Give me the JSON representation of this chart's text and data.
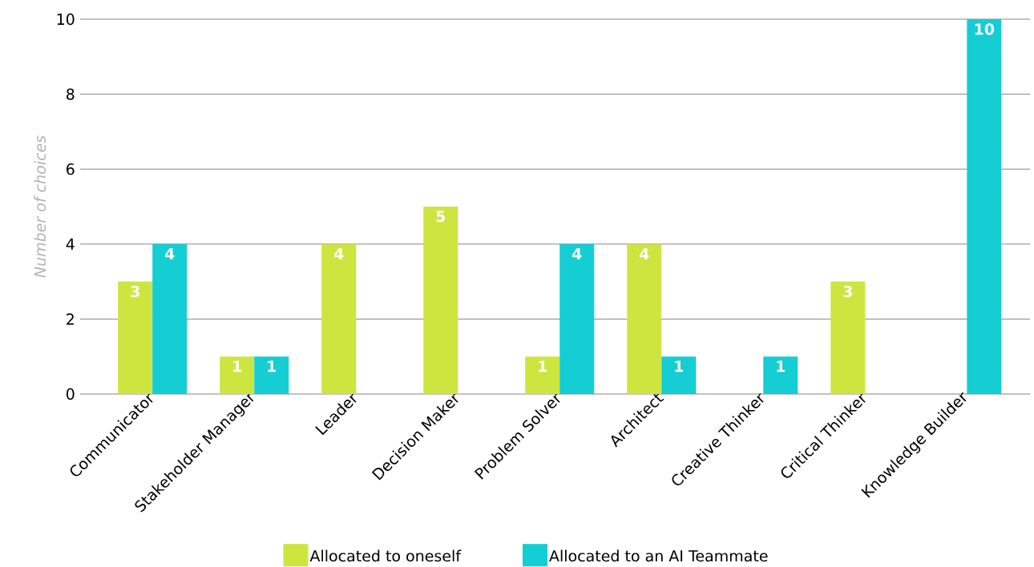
{
  "chart_data": {
    "type": "bar",
    "ylabel": "Number of choices",
    "categories": [
      "Communicator",
      "Stakeholder Manager",
      "Leader",
      "Decision Maker",
      "Problem Solver",
      "Architect",
      "Creative Thinker",
      "Critical Thinker",
      "Knowledge Builder"
    ],
    "series": [
      {
        "name": "Allocated to oneself",
        "color": "#cde63f",
        "values": [
          3,
          1,
          4,
          5,
          1,
          4,
          null,
          3,
          null
        ]
      },
      {
        "name": "Allocated to an AI Teammate",
        "color": "#14ced4",
        "values": [
          4,
          1,
          null,
          null,
          4,
          1,
          1,
          null,
          10
        ]
      }
    ],
    "ylim": [
      0,
      10
    ],
    "yticks": [
      0,
      2,
      4,
      6,
      8,
      10
    ],
    "grid": "y",
    "legend": "bottom",
    "data_labels": true
  }
}
